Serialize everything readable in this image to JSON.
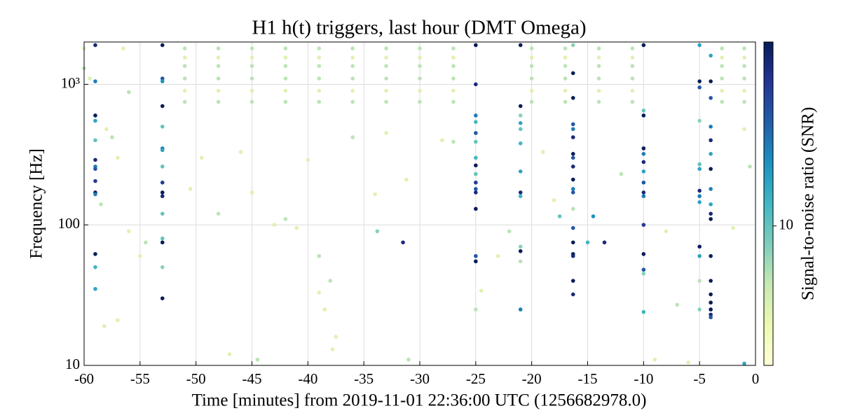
{
  "chart_data": {
    "type": "scatter",
    "title": "H1 h(t) triggers, last hour (DMT Omega)",
    "x_label": "Time [minutes] from 2019-11-01 22:36:00 UTC (1256682978.0)",
    "y_label": "Frequency [Hz]",
    "colorbar_label": "Signal-to-noise ratio (SNR)",
    "xlim": [
      -60,
      0
    ],
    "xticks": [
      -60,
      -55,
      -50,
      -45,
      -40,
      -35,
      -30,
      -25,
      -20,
      -15,
      -10,
      -5,
      0
    ],
    "ylim": [
      10,
      2000
    ],
    "yscale": "log",
    "yticks": [
      10,
      100,
      {
        "value": 1000,
        "label": "10³"
      }
    ],
    "clim": [
      5.5,
      22
    ],
    "cticks": [
      10
    ],
    "colormap": [
      "#ffffd9",
      "#edf8b1",
      "#c7e9b4",
      "#7fcdbb",
      "#41b6c4",
      "#1d91c0",
      "#225ea8",
      "#253494",
      "#081d58"
    ],
    "grid": true,
    "x": [
      -51,
      -51,
      -51,
      -51,
      -51,
      -51,
      -48,
      -48,
      -48,
      -48,
      -48,
      -48,
      -45,
      -45,
      -45,
      -45,
      -45,
      -45,
      -42,
      -42,
      -42,
      -42,
      -42,
      -42,
      -39,
      -39,
      -39,
      -39,
      -39,
      -39,
      -36,
      -36,
      -36,
      -36,
      -36,
      -36,
      -33,
      -33,
      -33,
      -33,
      -33,
      -33,
      -30,
      -30,
      -30,
      -30,
      -30,
      -30,
      -27,
      -27,
      -27,
      -27,
      -27,
      -27,
      -20,
      -20,
      -20,
      -20,
      -20,
      -20,
      -17,
      -17,
      -17,
      -17,
      -17,
      -17,
      -14,
      -14,
      -14,
      -14,
      -14,
      -14,
      -11,
      -11,
      -11,
      -11,
      -11,
      -11,
      -3,
      -3,
      -3,
      -3,
      -3,
      -3,
      -1,
      -1,
      -1,
      -1,
      -1,
      -1,
      -60,
      -60,
      -59.5,
      -58,
      -57.5,
      -57,
      -56.5,
      -56,
      -55,
      -56,
      -58.5,
      -58.2,
      -57,
      -54.5,
      -50.5,
      -49.5,
      -48,
      -47,
      -46,
      -44.5,
      -45,
      -43,
      -42,
      -41,
      -40,
      -39,
      -39,
      -38.5,
      -38,
      -37.8,
      -37.5,
      -36,
      -34,
      -33,
      -31,
      -31.2,
      -28,
      -27,
      -24.5,
      -23,
      -22,
      -19,
      -18,
      -12,
      -9,
      -8,
      -7,
      -6,
      -2,
      -0.5,
      -1,
      -59,
      -59,
      -59,
      -59,
      -59,
      -59,
      -59,
      -59,
      -59,
      -59,
      -59,
      -59,
      -59,
      -59,
      -53,
      -53,
      -53,
      -53,
      -53,
      -53,
      -53,
      -53,
      -53,
      -53,
      -53,
      -53,
      -53,
      -53,
      -53,
      -53,
      -25,
      -25,
      -25,
      -25,
      -25,
      -25,
      -25,
      -25,
      -25,
      -25,
      -25,
      -25,
      -25,
      -25,
      -25,
      -25,
      -21,
      -21,
      -21,
      -21,
      -21,
      -21,
      -21,
      -21,
      -21,
      -21,
      -21,
      -21,
      -21,
      -16.3,
      -16.3,
      -16.3,
      -16.3,
      -16.3,
      -16.3,
      -16.3,
      -16.3,
      -16.3,
      -16.3,
      -16.3,
      -16.3,
      -16.3,
      -16.3,
      -16.3,
      -16.3,
      -16.3,
      -16.3,
      -16.3,
      -10,
      -10,
      -10,
      -10,
      -10,
      -10,
      -10,
      -10,
      -10,
      -10,
      -10,
      -10,
      -10,
      -10,
      -10,
      -5,
      -5,
      -5,
      -5,
      -5,
      -5,
      -5,
      -5,
      -5,
      -5,
      -5,
      -5,
      -5,
      -4,
      -4,
      -4,
      -4,
      -4,
      -4,
      -4,
      -4,
      -4,
      -4,
      -4,
      -4,
      -4,
      -4,
      -4,
      -4,
      -4,
      -4,
      -31.5,
      -13.5,
      -15,
      -17.5,
      -14.5,
      -33.8,
      -1
    ],
    "values": [
      1800,
      1550,
      1350,
      1100,
      900,
      750,
      1800,
      1550,
      1350,
      1100,
      900,
      750,
      1800,
      1550,
      1350,
      1100,
      900,
      750,
      1800,
      1550,
      1350,
      1100,
      900,
      750,
      1800,
      1550,
      1350,
      1100,
      900,
      750,
      1800,
      1550,
      1350,
      1100,
      900,
      750,
      1800,
      1550,
      1350,
      1100,
      900,
      750,
      1800,
      1550,
      1350,
      1100,
      900,
      750,
      1800,
      1550,
      1350,
      1100,
      900,
      750,
      1800,
      1550,
      1350,
      1100,
      900,
      750,
      1800,
      1550,
      1350,
      1100,
      900,
      750,
      1800,
      1550,
      1350,
      1100,
      900,
      750,
      1800,
      1550,
      1350,
      1100,
      900,
      750,
      1800,
      1550,
      1350,
      1100,
      900,
      750,
      1800,
      1550,
      1350,
      1100,
      900,
      750,
      1800,
      1300,
      1100,
      480,
      420,
      300,
      1800,
      880,
      60,
      90,
      140,
      19,
      21,
      75,
      180,
      300,
      120,
      12,
      330,
      11,
      170,
      100,
      110,
      95,
      290,
      60,
      33,
      25,
      40,
      13,
      16,
      420,
      165,
      450,
      11,
      210,
      400,
      390,
      34,
      60,
      90,
      330,
      150,
      230,
      11,
      90,
      27,
      10.5,
      95,
      260,
      480,
      1900,
      1050,
      600,
      550,
      400,
      290,
      260,
      250,
      205,
      170,
      165,
      62,
      50,
      35,
      1900,
      1100,
      1050,
      700,
      500,
      350,
      340,
      260,
      200,
      170,
      160,
      120,
      80,
      75,
      50,
      30,
      1900,
      1000,
      600,
      540,
      450,
      390,
      300,
      265,
      230,
      200,
      180,
      170,
      130,
      60,
      55,
      25,
      1900,
      700,
      600,
      530,
      480,
      380,
      240,
      170,
      160,
      70,
      65,
      55,
      25,
      1900,
      1200,
      800,
      520,
      480,
      420,
      320,
      300,
      260,
      210,
      180,
      170,
      130,
      95,
      75,
      62,
      60,
      40,
      32,
      1900,
      650,
      600,
      350,
      320,
      280,
      240,
      200,
      170,
      160,
      100,
      62,
      48,
      45,
      24,
      1900,
      1050,
      950,
      550,
      270,
      250,
      175,
      160,
      145,
      70,
      60,
      40,
      25,
      1600,
      1050,
      800,
      500,
      400,
      320,
      250,
      180,
      140,
      120,
      110,
      60,
      40,
      32,
      28,
      25,
      23,
      22,
      75,
      75,
      75,
      115,
      115,
      90,
      10.3
    ],
    "snr": [
      8,
      7,
      8,
      8,
      7,
      8,
      8,
      7,
      8,
      8,
      7,
      8,
      8,
      7,
      8,
      8,
      7,
      8,
      8,
      7,
      8,
      8,
      7,
      8,
      8,
      7,
      8,
      8,
      7,
      8,
      8,
      7,
      8,
      8,
      7,
      8,
      8,
      7,
      8,
      8,
      7,
      8,
      8,
      7,
      8,
      8,
      7,
      8,
      8,
      7,
      8,
      8,
      7,
      8,
      8,
      7,
      8,
      8,
      7,
      8,
      8,
      7,
      8,
      8,
      7,
      8,
      8,
      7,
      8,
      8,
      7,
      8,
      8,
      7,
      8,
      8,
      7,
      8,
      8,
      7,
      8,
      8,
      7,
      8,
      8,
      7,
      8,
      8,
      7,
      8,
      7,
      8,
      7,
      7,
      8,
      7,
      7,
      8,
      7,
      7,
      8,
      7,
      7,
      8,
      7,
      7,
      8,
      7,
      7,
      8,
      7,
      7,
      8,
      7,
      7,
      8,
      7,
      7,
      8,
      7,
      7,
      8,
      7,
      7,
      8,
      7,
      7,
      8,
      7,
      7,
      8,
      7,
      7,
      8,
      7,
      7,
      8,
      7,
      7,
      8,
      7,
      20,
      14,
      22,
      12,
      10,
      20,
      14,
      16,
      18,
      22,
      14,
      22,
      11,
      12,
      22,
      16,
      13,
      22,
      10,
      14,
      12,
      10,
      18,
      22,
      20,
      10,
      10,
      22,
      9,
      22,
      22,
      20,
      14,
      11,
      16,
      10,
      11,
      22,
      10,
      18,
      16,
      20,
      22,
      16,
      22,
      8,
      22,
      22,
      9,
      12,
      10,
      11,
      12,
      20,
      11,
      9,
      22,
      8,
      14,
      9,
      22,
      22,
      16,
      14,
      20,
      22,
      16,
      20,
      22,
      14,
      16,
      8,
      16,
      22,
      22,
      20,
      22,
      20,
      22,
      10,
      22,
      22,
      14,
      20,
      12,
      16,
      20,
      14,
      18,
      22,
      16,
      9,
      11,
      12,
      22,
      16,
      9,
      10,
      12,
      20,
      14,
      12,
      22,
      12,
      8,
      9,
      12,
      22,
      16,
      14,
      20,
      12,
      22,
      14,
      12,
      20,
      22,
      22,
      22,
      22,
      22,
      22,
      20,
      16,
      20,
      20,
      11,
      10,
      13,
      9,
      12
    ]
  }
}
